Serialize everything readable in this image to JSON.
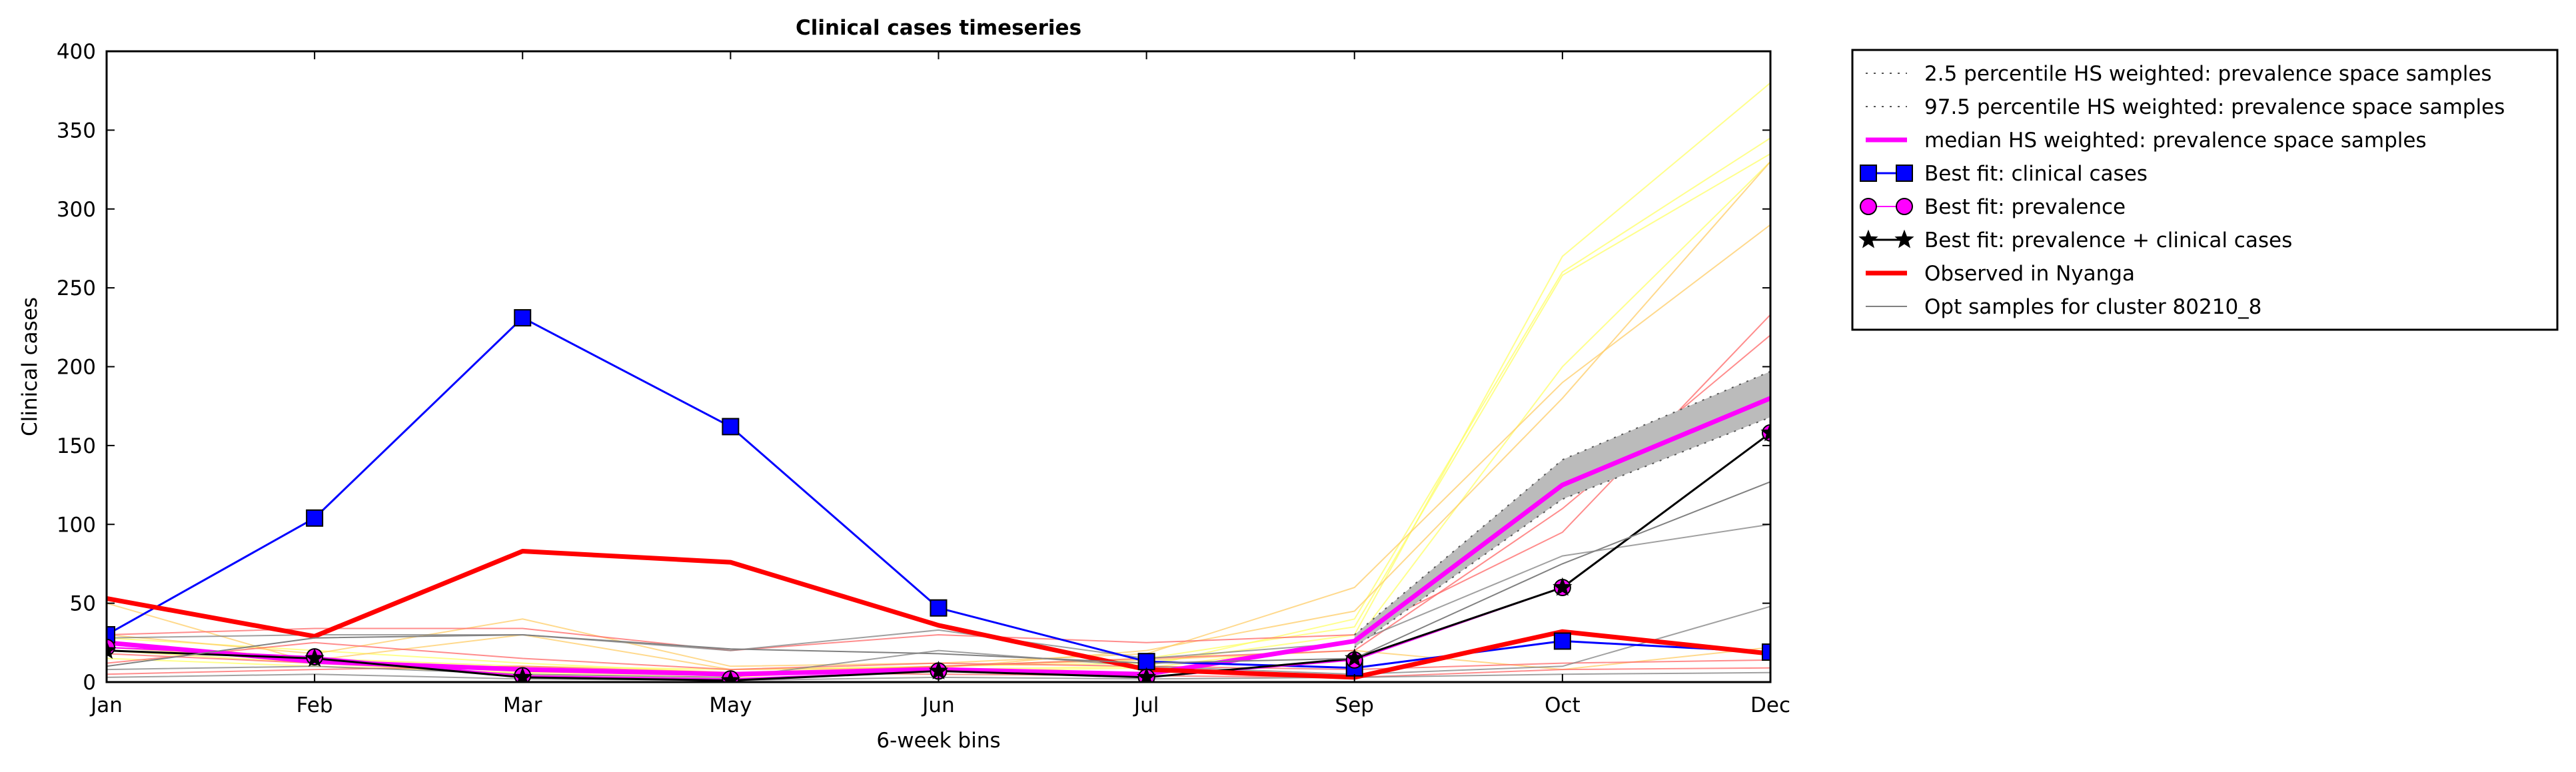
{
  "chart_data": {
    "type": "line",
    "title": "Clinical cases timeseries",
    "xlabel": "6-week bins",
    "ylabel": "Clinical cases",
    "categories": [
      "Jan",
      "Feb",
      "Mar",
      "May",
      "Jun",
      "Jul",
      "Sep",
      "Oct",
      "Dec"
    ],
    "ylim": [
      0,
      400
    ],
    "yticks": [
      "0",
      "50",
      "100",
      "150",
      "200",
      "250",
      "300",
      "350",
      "400"
    ],
    "grid": false,
    "legend_position": "outside-top-right",
    "band": {
      "lower": [
        null,
        null,
        null,
        null,
        null,
        null,
        22,
        116,
        168
      ],
      "upper": [
        null,
        null,
        null,
        null,
        null,
        null,
        30,
        141,
        197
      ],
      "fill": "#bbbbbb"
    },
    "series": [
      {
        "name": "2.5 percentile HS weighted: prevalence space samples",
        "style": "dotted",
        "color": "#555555",
        "width": 2,
        "values": [
          null,
          null,
          null,
          null,
          null,
          null,
          22,
          116,
          168
        ]
      },
      {
        "name": "97.5 percentile HS weighted: prevalence space samples",
        "style": "dotted",
        "color": "#555555",
        "width": 2,
        "values": [
          null,
          null,
          null,
          null,
          null,
          null,
          30,
          141,
          197
        ]
      },
      {
        "name": "median HS weighted: prevalence space samples",
        "style": "solid",
        "color": "#ff00ff",
        "width": 7,
        "values": [
          25,
          13,
          8,
          5,
          8,
          5,
          26,
          125,
          180
        ]
      },
      {
        "name": "Best fit: clinical cases",
        "style": "solid",
        "color": "#0000ff",
        "width": 3,
        "marker": "square",
        "values": [
          30,
          104,
          231,
          162,
          47,
          13,
          9,
          26,
          19
        ]
      },
      {
        "name": "Best fit: prevalence",
        "style": "solid",
        "color": "#ff00ff",
        "width": 2,
        "marker": "circle",
        "values": [
          22,
          16,
          4,
          2,
          7,
          3,
          14,
          60,
          158
        ]
      },
      {
        "name": "Best fit: prevalence + clinical cases",
        "style": "solid",
        "color": "#000000",
        "width": 3,
        "marker": "star",
        "values": [
          20,
          15,
          3,
          1,
          7,
          3,
          15,
          60,
          158
        ]
      },
      {
        "name": "Observed in Nyanga",
        "style": "solid",
        "color": "#ff0000",
        "width": 7,
        "values": [
          53,
          29,
          83,
          76,
          36,
          8,
          3,
          32,
          18
        ]
      },
      {
        "name": "Opt samples for cluster 80210_8",
        "style": "solid",
        "color": "#808080",
        "width": 2,
        "values": [
          10,
          28,
          30,
          21,
          18,
          12,
          15,
          75,
          127
        ]
      }
    ],
    "background_samples": [
      {
        "color": "#ffff66",
        "values": [
          25,
          15,
          10,
          8,
          10,
          12,
          30,
          270,
          380
        ]
      },
      {
        "color": "#ffff66",
        "values": [
          20,
          12,
          8,
          5,
          8,
          10,
          40,
          260,
          345
        ]
      },
      {
        "color": "#ffff66",
        "values": [
          15,
          10,
          6,
          4,
          7,
          9,
          25,
          200,
          330
        ]
      },
      {
        "color": "#ffff66",
        "values": [
          28,
          20,
          12,
          6,
          10,
          15,
          35,
          258,
          335
        ]
      },
      {
        "color": "#ffcc66",
        "values": [
          30,
          18,
          40,
          10,
          12,
          18,
          60,
          190,
          290
        ]
      },
      {
        "color": "#ffcc66",
        "values": [
          22,
          14,
          30,
          8,
          9,
          20,
          45,
          180,
          330
        ]
      },
      {
        "color": "#ffcc66",
        "values": [
          50,
          12,
          5,
          3,
          10,
          14,
          20,
          8,
          22
        ]
      },
      {
        "color": "#ff6666",
        "values": [
          30,
          34,
          34,
          20,
          30,
          25,
          30,
          95,
          233
        ]
      },
      {
        "color": "#ff6666",
        "values": [
          18,
          12,
          8,
          5,
          10,
          15,
          20,
          110,
          220
        ]
      },
      {
        "color": "#ff6666",
        "values": [
          12,
          25,
          15,
          8,
          12,
          10,
          8,
          12,
          14
        ]
      },
      {
        "color": "#ff6666",
        "values": [
          5,
          8,
          10,
          6,
          5,
          4,
          3,
          8,
          9
        ]
      },
      {
        "color": "#808080",
        "values": [
          28,
          30,
          30,
          20,
          33,
          15,
          25,
          80,
          100
        ]
      },
      {
        "color": "#808080",
        "values": [
          8,
          10,
          5,
          3,
          20,
          10,
          5,
          10,
          48
        ]
      },
      {
        "color": "#808080",
        "values": [
          3,
          5,
          2,
          1,
          3,
          2,
          3,
          5,
          6
        ]
      }
    ]
  }
}
